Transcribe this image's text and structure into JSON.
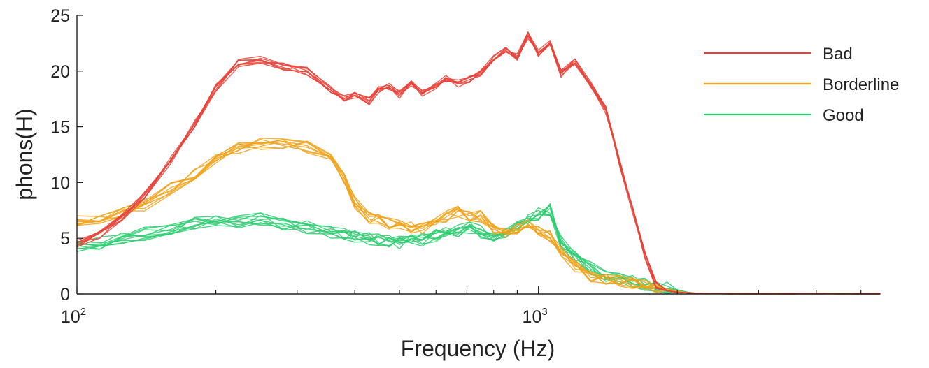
{
  "chart_data": {
    "type": "line",
    "xlabel": "Frequency (Hz)",
    "ylabel": "phons(H)",
    "xscale": "log",
    "xlim": [
      100,
      5500
    ],
    "ylim": [
      0,
      25
    ],
    "grid": false,
    "legend_position": "top-right",
    "y_ticks": [
      {
        "value": 0,
        "label": "0"
      },
      {
        "value": 5,
        "label": "5"
      },
      {
        "value": 10,
        "label": "10"
      },
      {
        "value": 15,
        "label": "15"
      },
      {
        "value": 20,
        "label": "20"
      },
      {
        "value": 25,
        "label": "25"
      }
    ],
    "x_major_ticks": [
      {
        "value": 100,
        "base": "10",
        "exp": "2"
      },
      {
        "value": 1000,
        "base": "10",
        "exp": "3"
      }
    ],
    "x_minor_ticks": [
      200,
      300,
      400,
      500,
      600,
      700,
      800,
      900,
      2000,
      3000,
      4000,
      5000
    ],
    "x": [
      100,
      112,
      125,
      140,
      160,
      180,
      200,
      224,
      250,
      280,
      315,
      355,
      380,
      400,
      430,
      450,
      475,
      500,
      530,
      560,
      600,
      630,
      670,
      710,
      750,
      800,
      850,
      900,
      950,
      1000,
      1060,
      1120,
      1200,
      1300,
      1400,
      1500,
      1600,
      1700,
      1800,
      1900,
      2000,
      2100,
      2200,
      2400,
      2600,
      2800,
      3000,
      3500,
      4000,
      4500,
      5000,
      5500
    ],
    "series": [
      {
        "name": "Bad",
        "color": "#e8433a",
        "values": [
          4.5,
          5.3,
          6.8,
          8.9,
          12.0,
          15.3,
          18.5,
          20.7,
          21.0,
          20.4,
          20.0,
          18.3,
          17.6,
          17.9,
          17.3,
          18.3,
          18.6,
          17.9,
          18.9,
          18.1,
          18.6,
          19.4,
          18.9,
          19.3,
          19.8,
          21.1,
          22.0,
          21.3,
          23.2,
          21.6,
          22.6,
          19.8,
          20.8,
          18.8,
          16.5,
          11.8,
          7.5,
          3.5,
          0.8,
          0.3,
          0.15,
          0.1,
          0.05,
          0.03,
          0.02,
          0.02,
          0.02,
          0.02,
          0.02,
          0.02,
          0.02,
          0.02
        ],
        "spread": 0.35,
        "copies": 8
      },
      {
        "name": "Borderline",
        "color": "#f0a31c",
        "values": [
          6.5,
          6.8,
          7.2,
          8.0,
          9.5,
          10.8,
          12.2,
          13.1,
          13.5,
          13.6,
          13.2,
          12.3,
          10.4,
          8.2,
          6.8,
          6.6,
          6.3,
          6.1,
          6.0,
          5.9,
          6.3,
          6.9,
          7.4,
          7.1,
          7.0,
          5.8,
          5.4,
          5.9,
          6.2,
          5.6,
          5.2,
          3.8,
          2.5,
          1.6,
          1.3,
          1.1,
          1.0,
          0.8,
          0.6,
          0.4,
          0.25,
          0.1,
          0.05,
          0.03,
          0.02,
          0.02,
          0.02,
          0.02,
          0.02,
          0.02,
          0.02,
          0.02
        ],
        "spread": 0.55,
        "copies": 9
      },
      {
        "name": "Good",
        "color": "#2ecc71",
        "values": [
          4.3,
          4.6,
          5.0,
          5.4,
          5.9,
          6.3,
          6.6,
          6.5,
          6.7,
          6.3,
          6.0,
          5.6,
          5.3,
          5.2,
          5.0,
          4.8,
          4.7,
          4.6,
          4.8,
          4.9,
          5.3,
          5.5,
          5.7,
          5.9,
          5.6,
          5.2,
          5.3,
          6.0,
          6.6,
          7.2,
          7.6,
          4.6,
          3.3,
          2.3,
          1.7,
          1.3,
          1.1,
          0.9,
          0.7,
          0.5,
          0.35,
          0.15,
          0.05,
          0.03,
          0.02,
          0.02,
          0.02,
          0.02,
          0.02,
          0.02,
          0.02,
          0.02
        ],
        "spread": 0.6,
        "copies": 10
      }
    ]
  }
}
